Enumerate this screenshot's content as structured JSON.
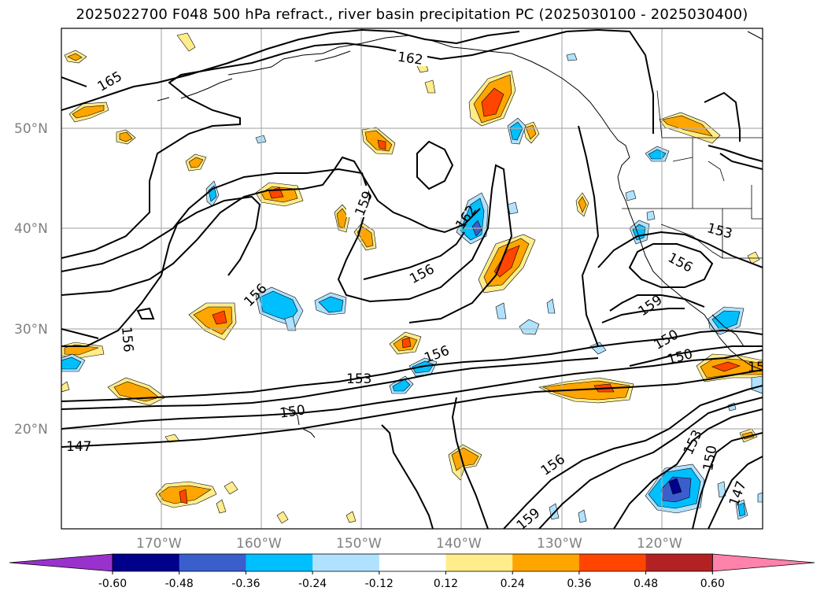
{
  "title": "2025022700 F048 500 hPa refract., river basin precipitation PC (2025030100 - 2025030400)",
  "lat_labels": [
    "50°N",
    "40°N",
    "30°N",
    "20°N"
  ],
  "lon_labels": [
    "170°W",
    "160°W",
    "150°W",
    "140°W",
    "130°W",
    "120°W"
  ],
  "contour_labels": [
    "165",
    "162",
    "159",
    "162",
    "156",
    "156",
    "156",
    "153",
    "150",
    "147",
    "153",
    "156",
    "159",
    "150",
    "150",
    "156",
    "159",
    "153",
    "150",
    "147",
    "15"
  ],
  "colorbar": {
    "colors": [
      "#9932cc",
      "#00008b",
      "#3a5fcd",
      "#00bfff",
      "#b0e2ff",
      "#ffffff",
      "#ffec8b",
      "#ffa500",
      "#ff4500",
      "#b22222",
      "#ff82ab"
    ],
    "tick_labels": [
      "-0.60",
      "-0.48",
      "-0.36",
      "-0.24",
      "-0.12",
      "0.12",
      "0.24",
      "0.36",
      "0.48",
      "0.60"
    ]
  }
}
